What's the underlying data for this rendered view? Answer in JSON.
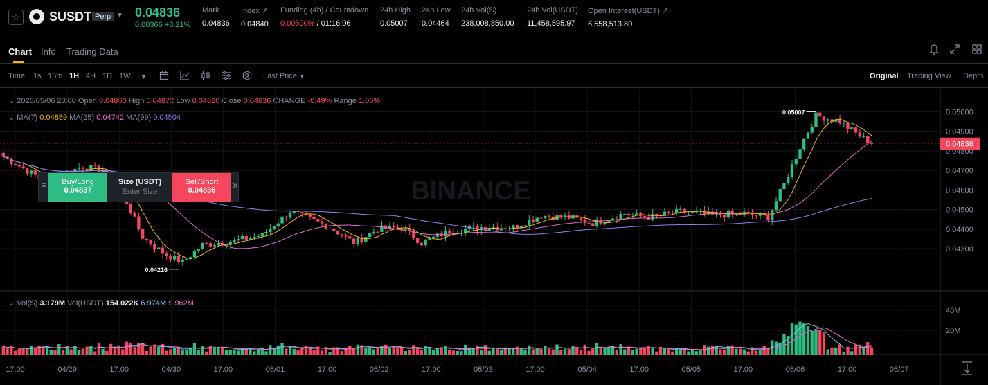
{
  "header": {
    "symbol": "SUSDT",
    "badge": "Perp",
    "last_price": "0.04836",
    "change": "0.00366 +8.21%",
    "stats": [
      {
        "label": "Mark",
        "value": "0.04836"
      },
      {
        "label": "Index ↗",
        "value": "0.04840"
      },
      {
        "label": "Funding (4h) / Countdown",
        "value_red": "0.00500%",
        "value": " / 01:16:06"
      },
      {
        "label": "24h High",
        "value": "0.05007"
      },
      {
        "label": "24h Low",
        "value": "0.04464"
      },
      {
        "label": "24h Vol(S)",
        "value": "238,008,850.00"
      },
      {
        "label": "24h Vol(USDT)",
        "value": "11,458,595.97"
      },
      {
        "label": "Open Interest(USDT) ↗",
        "value": "6,558,513.80"
      }
    ]
  },
  "tabs": [
    "Chart",
    "Info",
    "Trading Data"
  ],
  "toolbar": {
    "intervals": [
      "Time",
      "1s",
      "15m",
      "1H",
      "4H",
      "1D",
      "1W"
    ],
    "active_interval": "1H",
    "price_type": "Last Price",
    "views": [
      "Original",
      "Trading View",
      "Depth"
    ],
    "active_view": "Original"
  },
  "ohlc_legend": {
    "date": "2026/05/06 23:00",
    "open_label": "Open",
    "open": "0.04860",
    "high_label": "High",
    "high": "0.04872",
    "low_label": "Low",
    "low": "0.04820",
    "close_label": "Close",
    "close": "0.04836",
    "change_label": "CHANGE",
    "change": "-0.49%",
    "range_label": "Range",
    "range": "1.06%"
  },
  "ma_legend": {
    "ma7_label": "MA(7)",
    "ma7": "0.04859",
    "ma25_label": "MA(25)",
    "ma25": "0.04742",
    "ma99_label": "MA(99)",
    "ma99": "0.04504"
  },
  "vol_legend": {
    "vols_label": "Vol(S)",
    "vols": "3.179M",
    "volusdt_label": "Vol(USDT)",
    "volusdt": "154.022K",
    "ma1": "6.974M",
    "ma2": "9.962M"
  },
  "order_panel": {
    "buy_label": "Buy/Long",
    "buy_price": "0.04837",
    "size_label": "Size (USDT)",
    "size_placeholder": "Enter Size",
    "sell_label": "Sell/Short",
    "sell_price": "0.04836"
  },
  "watermark": "BINANCE",
  "colors": {
    "up": "#2ebd85",
    "down": "#f6465d",
    "ma7": "#f0b90b",
    "ma25": "#e46ec8",
    "ma99": "#8b84f0",
    "accent": "#f0b90b"
  },
  "chart_data": {
    "type": "candlestick",
    "y_axis_ticks": [
      "0.05000",
      "0.04900",
      "0.04800",
      "0.04700",
      "0.04600",
      "0.04500",
      "0.04400",
      "0.04300"
    ],
    "y_range": [
      0.0418,
      0.0509
    ],
    "current_price_label": "0.04836",
    "high_marker": "0.05007",
    "low_marker": "0.04216",
    "x_ticks": [
      "17:00",
      "04/29",
      "17:00",
      "04/30",
      "17:00",
      "05/01",
      "17:00",
      "05/02",
      "17:00",
      "05/03",
      "17:00",
      "05/04",
      "17:00",
      "05/05",
      "17:00",
      "05/06",
      "17:00",
      "05/07"
    ],
    "volume_ticks": [
      "40M",
      "20M"
    ],
    "close_anchors": [
      [
        0,
        0.0477
      ],
      [
        10,
        0.0465
      ],
      [
        20,
        0.0472
      ],
      [
        25,
        0.047
      ],
      [
        30,
        0.0458
      ],
      [
        35,
        0.0436
      ],
      [
        40,
        0.0428
      ],
      [
        45,
        0.0423
      ],
      [
        50,
        0.0432
      ],
      [
        58,
        0.0434
      ],
      [
        65,
        0.0437
      ],
      [
        72,
        0.0449
      ],
      [
        76,
        0.0446
      ],
      [
        82,
        0.0441
      ],
      [
        88,
        0.0433
      ],
      [
        94,
        0.044
      ],
      [
        100,
        0.0441
      ],
      [
        105,
        0.0433
      ],
      [
        112,
        0.0439
      ],
      [
        120,
        0.0441
      ],
      [
        128,
        0.0441
      ],
      [
        135,
        0.0447
      ],
      [
        142,
        0.0446
      ],
      [
        148,
        0.0443
      ],
      [
        156,
        0.0448
      ],
      [
        162,
        0.0446
      ],
      [
        170,
        0.0449
      ],
      [
        178,
        0.0447
      ],
      [
        186,
        0.0448
      ],
      [
        192,
        0.0446
      ],
      [
        196,
        0.0463
      ],
      [
        200,
        0.0482
      ],
      [
        204,
        0.0498
      ],
      [
        210,
        0.0495
      ],
      [
        214,
        0.0489
      ],
      [
        218,
        0.04836
      ]
    ]
  }
}
